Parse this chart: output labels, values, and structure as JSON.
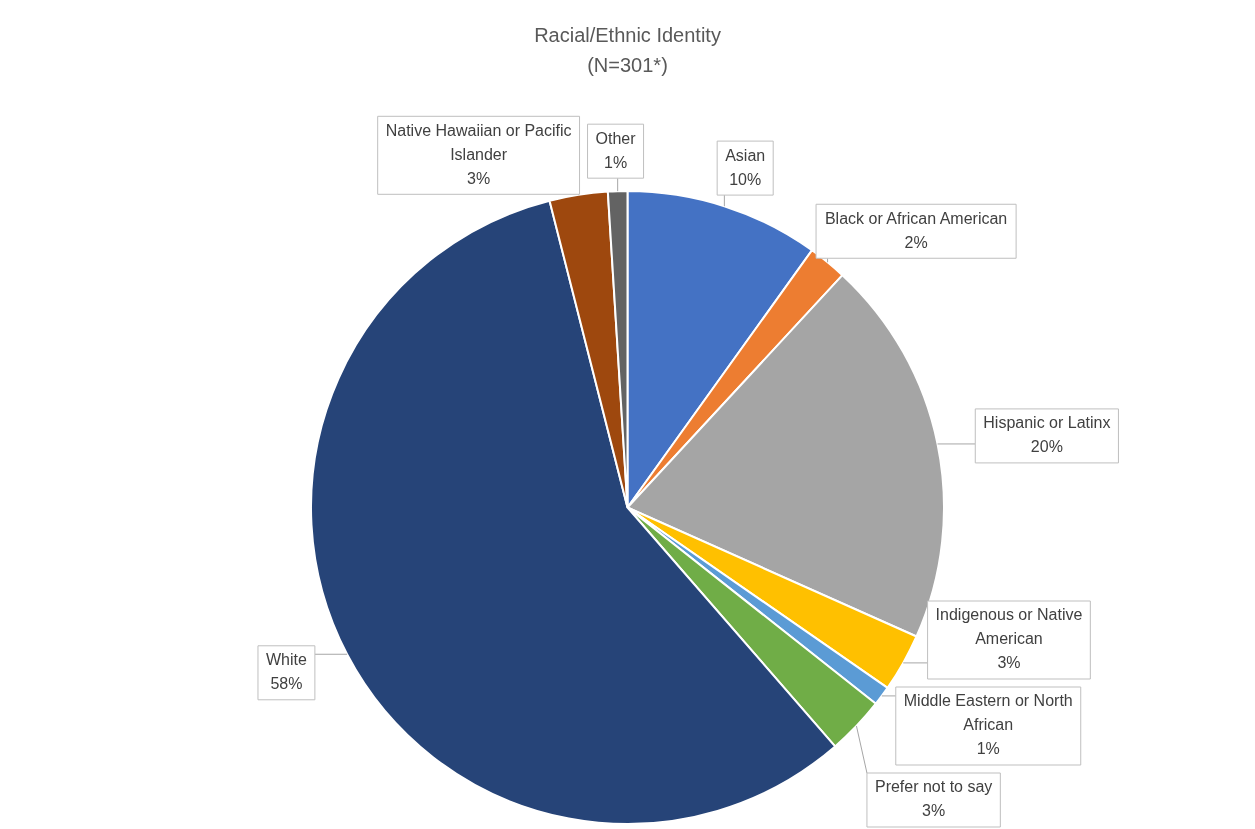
{
  "chart_data": {
    "type": "pie",
    "title": "Racial/Ethnic Identity",
    "subtitle": "(N=301*)",
    "categories": [
      "Asian",
      "Black or African American",
      "Hispanic or Latinx",
      "Indigenous or Native American",
      "Middle Eastern or North African",
      "Prefer not to say",
      "White",
      "Native Hawaiian or Pacific Islander",
      "Other"
    ],
    "values": [
      10,
      2,
      20,
      3,
      1,
      3,
      58,
      3,
      1
    ],
    "colors": [
      "#4472c4",
      "#ed7d31",
      "#a5a5a5",
      "#ffc000",
      "#5b9bd5",
      "#70ad47",
      "#264478",
      "#9e480e",
      "#636363"
    ],
    "value_labels": [
      "10%",
      "2%",
      "20%",
      "3%",
      "1%",
      "3%",
      "58%",
      "3%",
      "1%"
    ],
    "legend": false
  }
}
